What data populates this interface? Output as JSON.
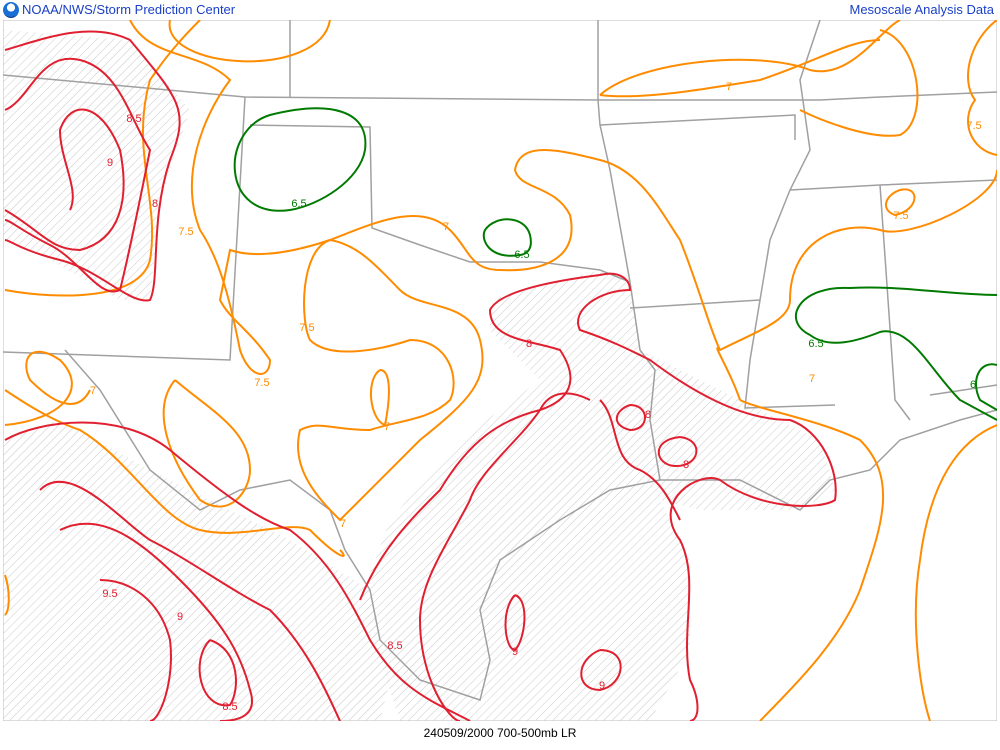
{
  "header": {
    "title_left": "NOAA/NWS/Storm Prediction Center",
    "title_right": "Mesoscale Analysis Data",
    "logo": "noaa-logo"
  },
  "footer": {
    "caption": "240509/2000 700-500mb LR"
  },
  "colors": {
    "contour_low": "#007a00",
    "contour_mid": "#ff8c00",
    "contour_high": "#e02030",
    "boundaries": "#a0a0a0",
    "hatch": "#c8c8c8"
  },
  "contour_labels": [
    "8.5",
    "9",
    "8",
    "7.5",
    "6.5",
    "7.5",
    "7",
    "6.5",
    "7.5",
    "7",
    "7",
    "7",
    "8",
    "8",
    "8",
    "7",
    "7.5",
    "7.5",
    "6.5",
    "7",
    "6",
    "9.5",
    "9",
    "8.5",
    "8.5",
    "9",
    "9"
  ]
}
